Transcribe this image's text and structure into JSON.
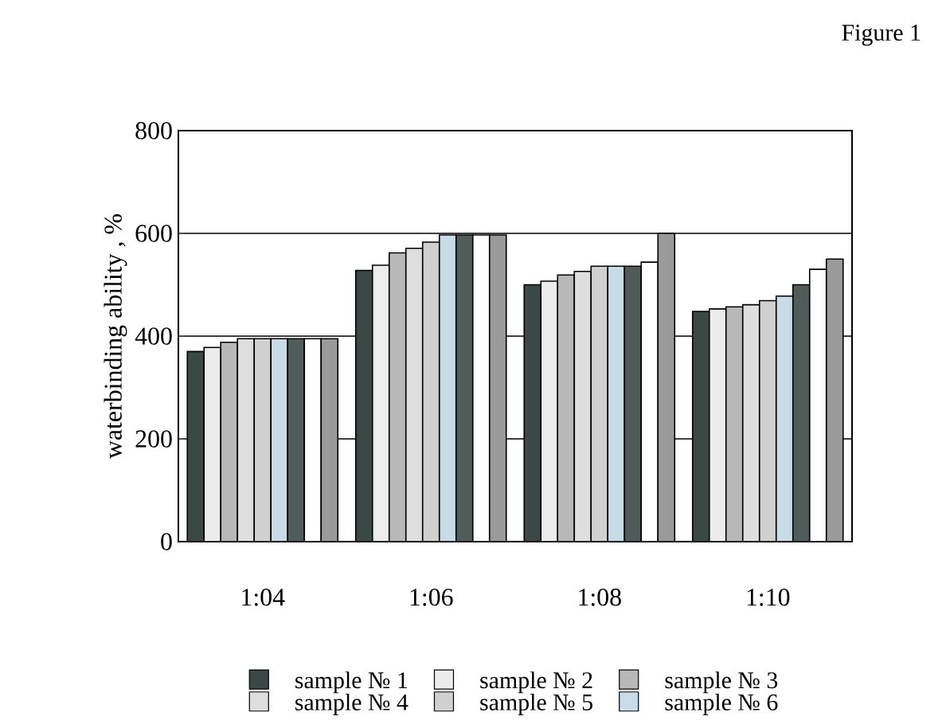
{
  "chart_data": {
    "type": "bar",
    "title": "Figure 1",
    "ylabel": "waterbinding ability , %",
    "categories": [
      "1:04",
      "1:06",
      "1:08",
      "1:10"
    ],
    "series": [
      {
        "name": "sample № 1",
        "color": "#3a4846",
        "values": [
          370,
          528,
          500,
          448
        ]
      },
      {
        "name": "sample № 2",
        "color": "#ececec",
        "values": [
          378,
          538,
          507,
          453
        ]
      },
      {
        "name": "sample № 3",
        "color": "#b8b8b8",
        "values": [
          388,
          562,
          519,
          457
        ]
      },
      {
        "name": "sample № 4",
        "color": "#dedede",
        "values": [
          395,
          571,
          526,
          461
        ]
      },
      {
        "name": "sample № 5",
        "color": "#d0d0d0",
        "values": [
          395,
          583,
          536,
          469
        ]
      },
      {
        "name": "sample № 6",
        "color": "#c8dce8",
        "values": [
          395,
          597,
          536,
          478
        ]
      },
      {
        "color": "#505c5a",
        "values": [
          395,
          597,
          536,
          500
        ]
      },
      {
        "color": "#ffffff",
        "values": [
          395,
          597,
          544,
          530
        ]
      },
      {
        "color": "#9a9a9a",
        "values": [
          395,
          597,
          600,
          550
        ]
      }
    ],
    "ylim": [
      0,
      800
    ],
    "yticks": [
      0,
      200,
      400,
      600,
      800
    ],
    "grid": "y",
    "legend": "bottom"
  }
}
